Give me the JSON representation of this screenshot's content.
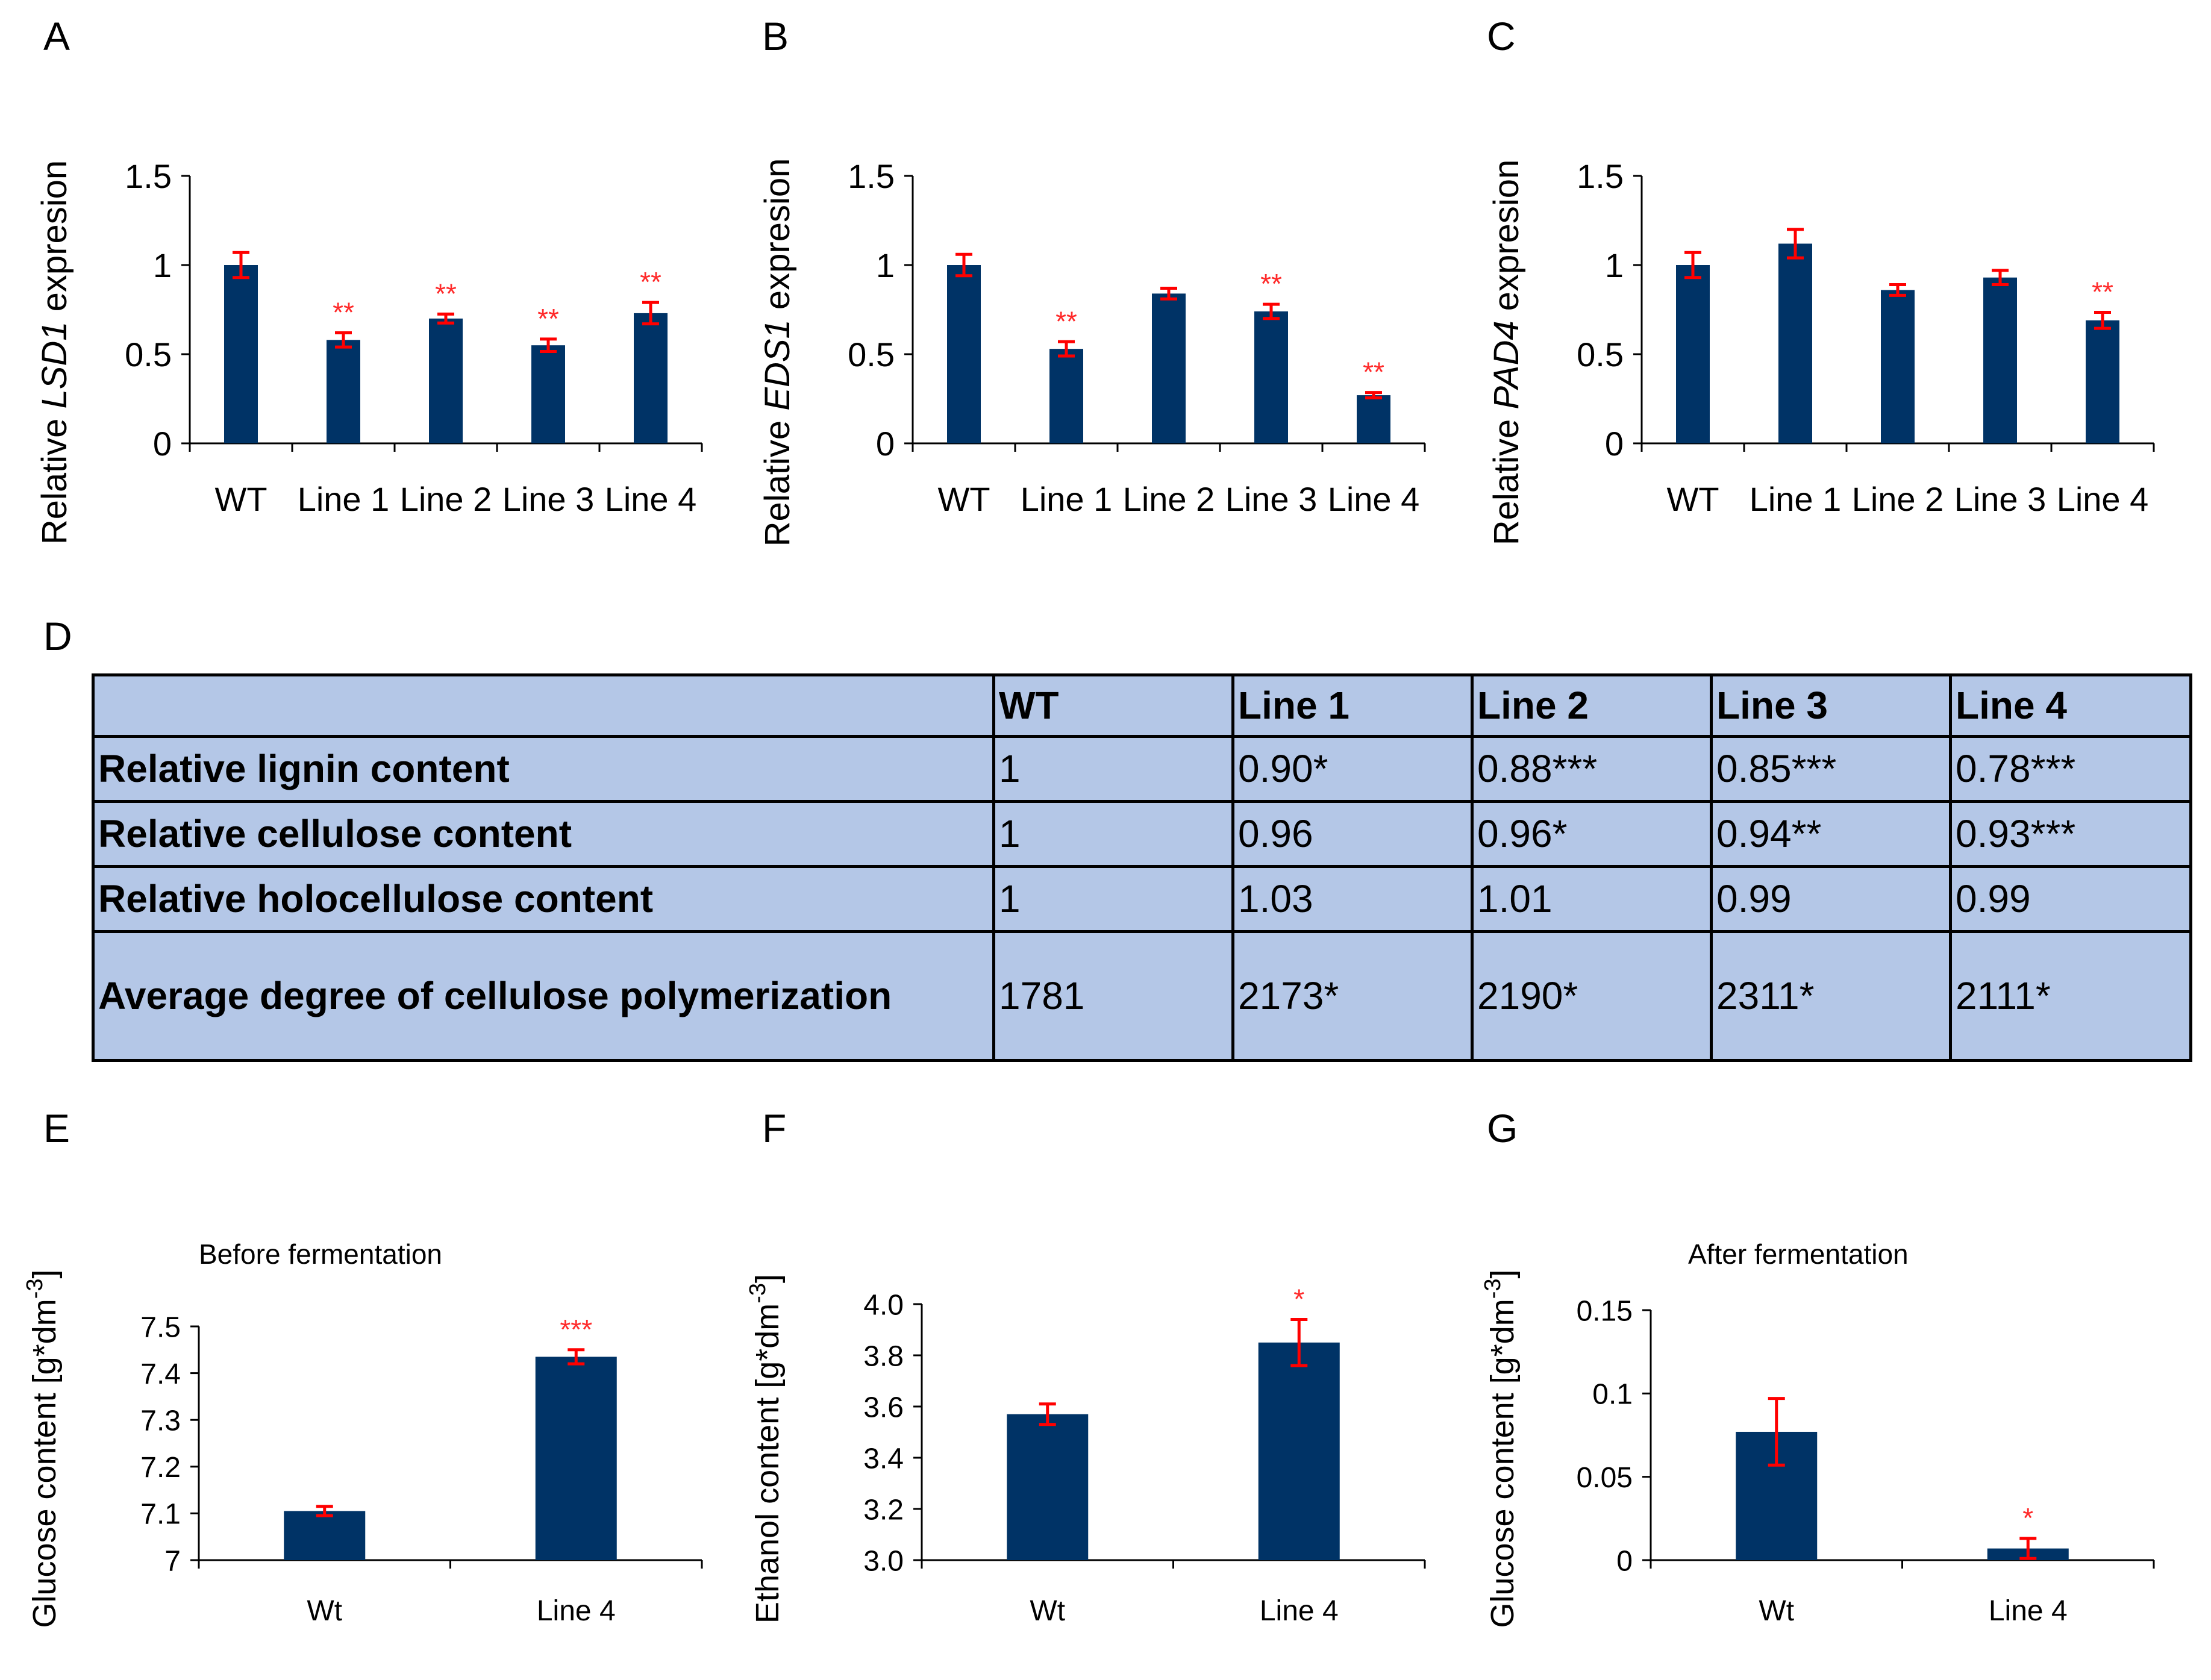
{
  "panel_letters": {
    "a": "A",
    "b": "B",
    "c": "C",
    "d": "D",
    "e": "E",
    "f": "F",
    "g": "G"
  },
  "chart_data": [
    {
      "panel": "A",
      "type": "bar",
      "title": "",
      "ylabel_prefix": "Relative ",
      "ylabel_gene": "LSD1",
      "ylabel_suffix": " expresion",
      "categories": [
        "WT",
        "Line 1",
        "Line 2",
        "Line 3",
        "Line 4"
      ],
      "values": [
        1.0,
        0.58,
        0.7,
        0.55,
        0.73
      ],
      "errors": [
        0.07,
        0.04,
        0.025,
        0.035,
        0.06
      ],
      "significance": [
        "",
        "**",
        "**",
        "**",
        "**"
      ],
      "ylim": [
        0,
        1.5
      ],
      "yticks": [
        0,
        0.5,
        1,
        1.5
      ],
      "ytick_labels": [
        "0",
        "0.5",
        "1",
        "1.5"
      ]
    },
    {
      "panel": "B",
      "type": "bar",
      "title": "",
      "ylabel_prefix": "Relative ",
      "ylabel_gene": "EDS1",
      "ylabel_suffix": " expresion",
      "categories": [
        "WT",
        "Line 1",
        "Line 2",
        "Line 3",
        "Line 4"
      ],
      "values": [
        1.0,
        0.53,
        0.84,
        0.74,
        0.27
      ],
      "errors": [
        0.06,
        0.04,
        0.03,
        0.04,
        0.015
      ],
      "significance": [
        "",
        "**",
        "",
        "**",
        "**"
      ],
      "ylim": [
        0,
        1.5
      ],
      "yticks": [
        0,
        0.5,
        1,
        1.5
      ],
      "ytick_labels": [
        "0",
        "0.5",
        "1",
        "1.5"
      ]
    },
    {
      "panel": "C",
      "type": "bar",
      "title": "",
      "ylabel_prefix": "Relative ",
      "ylabel_gene": "PAD4",
      "ylabel_suffix": " expresion",
      "categories": [
        "WT",
        "Line 1",
        "Line 2",
        "Line 3",
        "Line 4"
      ],
      "values": [
        1.0,
        1.12,
        0.86,
        0.93,
        0.69
      ],
      "errors": [
        0.07,
        0.08,
        0.03,
        0.04,
        0.045
      ],
      "significance": [
        "",
        "",
        "",
        "",
        "**"
      ],
      "ylim": [
        0,
        1.5
      ],
      "yticks": [
        0,
        0.5,
        1,
        1.5
      ],
      "ytick_labels": [
        "0",
        "0.5",
        "1",
        "1.5"
      ]
    },
    {
      "panel": "E",
      "type": "bar",
      "title": "Before fermentation",
      "ylabel_main": "Glucose content [g*dm",
      "ylabel_sup": "-3",
      "ylabel_end": "]",
      "categories": [
        "Wt",
        "Line 4"
      ],
      "values": [
        7.105,
        7.435
      ],
      "errors": [
        0.01,
        0.015
      ],
      "significance": [
        "",
        "***"
      ],
      "ylim": [
        7,
        7.5
      ],
      "yticks": [
        7,
        7.1,
        7.2,
        7.3,
        7.4,
        7.5
      ],
      "ytick_labels": [
        "7",
        "7.1",
        "7.2",
        "7.3",
        "7.4",
        "7.5"
      ]
    },
    {
      "panel": "F",
      "type": "bar",
      "title": "",
      "ylabel_main": "Ethanol content [g*dm",
      "ylabel_sup": "-3",
      "ylabel_end": "]",
      "categories": [
        "Wt",
        "Line 4"
      ],
      "values": [
        3.57,
        3.85
      ],
      "errors": [
        0.04,
        0.09
      ],
      "significance": [
        "",
        "*"
      ],
      "ylim": [
        3.0,
        4.0
      ],
      "yticks": [
        3.0,
        3.2,
        3.4,
        3.6,
        3.8,
        4.0
      ],
      "ytick_labels": [
        "3.0",
        "3.2",
        "3.4",
        "3.6",
        "3.8",
        "4.0"
      ]
    },
    {
      "panel": "G",
      "type": "bar",
      "title": "After fermentation",
      "ylabel_main": "Glucose content [g*dm",
      "ylabel_sup": "-3",
      "ylabel_end": "]",
      "categories": [
        "Wt",
        "Line 4"
      ],
      "values": [
        0.077,
        0.007
      ],
      "errors": [
        0.02,
        0.006
      ],
      "significance": [
        "",
        "*"
      ],
      "ylim": [
        0,
        0.15
      ],
      "yticks": [
        0,
        0.05,
        0.1,
        0.15
      ],
      "ytick_labels": [
        "0",
        "0.05",
        "0.1",
        "0.15"
      ]
    }
  ],
  "table": {
    "header": [
      "",
      "WT",
      "Line 1",
      "Line 2",
      "Line 3",
      "Line 4"
    ],
    "rows": [
      {
        "label": "Relative lignin content",
        "cells": [
          "1",
          "0.90*",
          "0.88***",
          "0.85***",
          "0.78***"
        ]
      },
      {
        "label": "Relative cellulose content",
        "cells": [
          "1",
          "0.96",
          "0.96*",
          "0.94**",
          "0.93***"
        ]
      },
      {
        "label": "Relative holocellulose content",
        "cells": [
          "1",
          "1.03",
          "1.01",
          "0.99",
          "0.99"
        ]
      },
      {
        "label": "Average degree of cellulose polymerization",
        "cells": [
          "1781",
          "2173*",
          "2190*",
          "2311*",
          "2111*"
        ]
      }
    ]
  },
  "colors": {
    "bar": "#003366",
    "error": "#ff0000",
    "significance": "#ff2a2a",
    "table_bg": "#b4c7e7",
    "axis": "#000000"
  }
}
